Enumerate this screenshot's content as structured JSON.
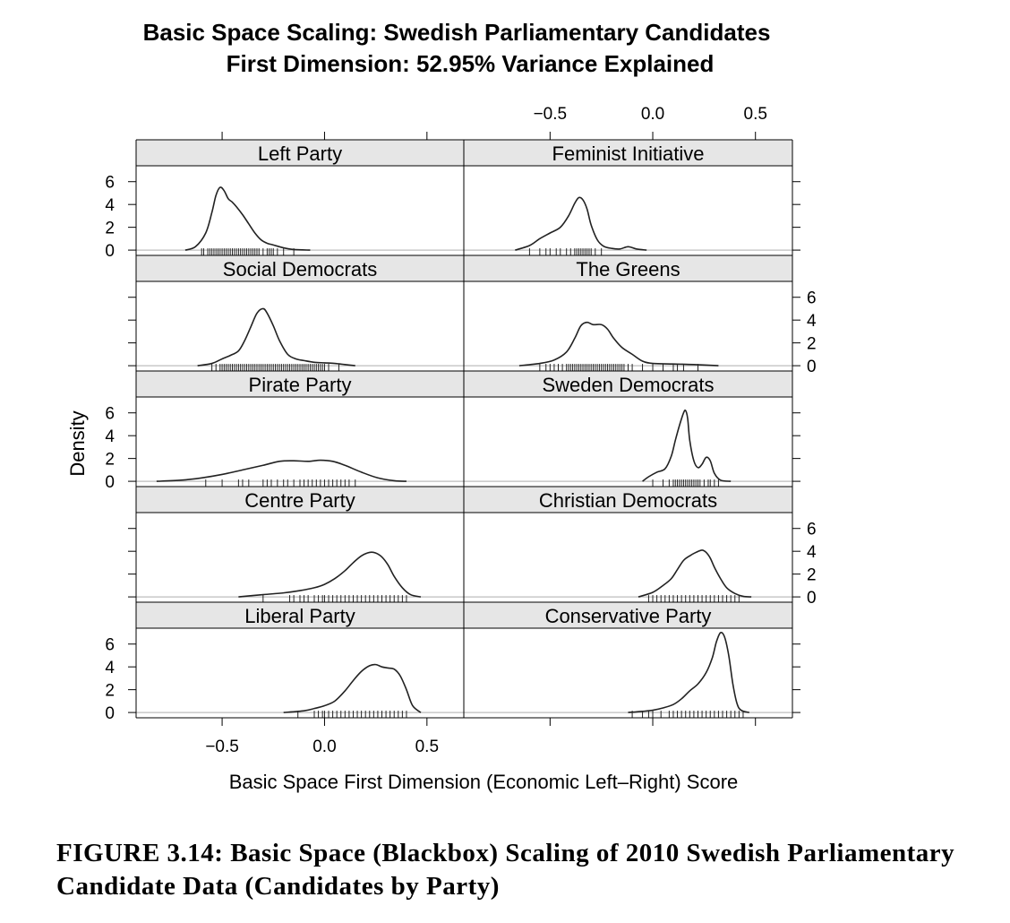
{
  "caption": "FIGURE 3.14: Basic Space (Blackbox) Scaling of 2010 Swedish Parliamentary Candidate Data (Candidates by Party)",
  "chart_data": {
    "type": "area",
    "title": "Basic Space Scaling: Swedish Parliamentary Candidates",
    "subtitle": "First Dimension: 52.95% Variance Explained",
    "xlabel": "Basic Space First Dimension (Economic Left–Right) Score",
    "ylabel": "Density",
    "xlim": [
      -0.92,
      0.68
    ],
    "ylim": [
      -0.15,
      7.0
    ],
    "x_ticks": [
      -0.5,
      0.0,
      0.5
    ],
    "x_tick_labels": [
      "−0.5",
      "0.0",
      "0.5"
    ],
    "y_ticks": [
      0,
      2,
      4,
      6
    ],
    "y_tick_labels": [
      "0",
      "2",
      "4",
      "6"
    ],
    "grid": false,
    "legend": "none",
    "layout": {
      "columns": 2,
      "rows": 5
    },
    "panels": [
      {
        "name": "Left Party",
        "col": 0,
        "row": 0,
        "x": [
          -0.68,
          -0.63,
          -0.58,
          -0.55,
          -0.53,
          -0.51,
          -0.49,
          -0.47,
          -0.45,
          -0.43,
          -0.4,
          -0.37,
          -0.34,
          -0.31,
          -0.28,
          -0.25,
          -0.2,
          -0.15,
          -0.07
        ],
        "y": [
          0.0,
          0.3,
          1.5,
          3.3,
          4.8,
          5.5,
          5.2,
          4.5,
          4.2,
          3.8,
          3.1,
          2.3,
          1.5,
          0.9,
          0.6,
          0.45,
          0.2,
          0.05,
          0.0
        ],
        "rug": [
          -0.6,
          -0.59,
          -0.57,
          -0.56,
          -0.55,
          -0.54,
          -0.53,
          -0.52,
          -0.51,
          -0.5,
          -0.49,
          -0.48,
          -0.47,
          -0.46,
          -0.45,
          -0.44,
          -0.43,
          -0.42,
          -0.41,
          -0.4,
          -0.39,
          -0.38,
          -0.37,
          -0.36,
          -0.35,
          -0.34,
          -0.33,
          -0.32,
          -0.3,
          -0.28,
          -0.27,
          -0.26,
          -0.25,
          -0.23,
          -0.2,
          -0.15
        ]
      },
      {
        "name": "Social Democrats",
        "col": 0,
        "row": 1,
        "x": [
          -0.62,
          -0.55,
          -0.5,
          -0.46,
          -0.42,
          -0.39,
          -0.36,
          -0.33,
          -0.3,
          -0.28,
          -0.25,
          -0.22,
          -0.18,
          -0.14,
          -0.1,
          -0.05,
          0.0,
          0.05,
          0.1,
          0.15
        ],
        "y": [
          0.0,
          0.2,
          0.6,
          0.9,
          1.3,
          2.2,
          3.4,
          4.6,
          5.0,
          4.6,
          3.5,
          2.2,
          1.0,
          0.6,
          0.45,
          0.3,
          0.25,
          0.2,
          0.1,
          0.0
        ],
        "rug": [
          -0.55,
          -0.53,
          -0.51,
          -0.5,
          -0.49,
          -0.48,
          -0.47,
          -0.46,
          -0.45,
          -0.44,
          -0.43,
          -0.42,
          -0.41,
          -0.4,
          -0.39,
          -0.38,
          -0.37,
          -0.36,
          -0.35,
          -0.34,
          -0.33,
          -0.32,
          -0.31,
          -0.3,
          -0.29,
          -0.28,
          -0.27,
          -0.26,
          -0.25,
          -0.24,
          -0.23,
          -0.22,
          -0.21,
          -0.2,
          -0.19,
          -0.18,
          -0.17,
          -0.16,
          -0.15,
          -0.14,
          -0.13,
          -0.12,
          -0.11,
          -0.1,
          -0.09,
          -0.08,
          -0.07,
          -0.06,
          -0.05,
          -0.04,
          -0.03,
          -0.02,
          -0.01,
          0.0,
          0.02,
          0.07
        ]
      },
      {
        "name": "Pirate Party",
        "col": 0,
        "row": 2,
        "x": [
          -0.82,
          -0.7,
          -0.6,
          -0.5,
          -0.4,
          -0.3,
          -0.22,
          -0.15,
          -0.08,
          -0.02,
          0.04,
          0.1,
          0.18,
          0.26,
          0.34,
          0.4
        ],
        "y": [
          0.0,
          0.1,
          0.3,
          0.6,
          1.0,
          1.4,
          1.75,
          1.8,
          1.75,
          1.85,
          1.75,
          1.4,
          0.8,
          0.3,
          0.05,
          0.0
        ],
        "rug": [
          -0.58,
          -0.5,
          -0.42,
          -0.4,
          -0.37,
          -0.3,
          -0.28,
          -0.26,
          -0.23,
          -0.2,
          -0.18,
          -0.15,
          -0.12,
          -0.1,
          -0.08,
          -0.06,
          -0.04,
          -0.02,
          0.0,
          0.02,
          0.04,
          0.06,
          0.08,
          0.1,
          0.12,
          0.15
        ]
      },
      {
        "name": "Centre Party",
        "col": 0,
        "row": 3,
        "x": [
          -0.42,
          -0.3,
          -0.2,
          -0.12,
          -0.05,
          0.0,
          0.05,
          0.1,
          0.14,
          0.18,
          0.22,
          0.25,
          0.28,
          0.31,
          0.34,
          0.38,
          0.42,
          0.47
        ],
        "y": [
          0.0,
          0.2,
          0.35,
          0.55,
          0.8,
          1.1,
          1.6,
          2.3,
          3.0,
          3.6,
          3.9,
          3.85,
          3.5,
          2.8,
          1.8,
          0.8,
          0.2,
          0.0
        ],
        "rug": [
          -0.3,
          -0.17,
          -0.15,
          -0.12,
          -0.1,
          -0.08,
          -0.05,
          -0.03,
          -0.01,
          0.0,
          0.02,
          0.04,
          0.06,
          0.08,
          0.1,
          0.12,
          0.14,
          0.16,
          0.18,
          0.2,
          0.22,
          0.24,
          0.26,
          0.28,
          0.3,
          0.32,
          0.34,
          0.36,
          0.38,
          0.4
        ]
      },
      {
        "name": "Liberal Party",
        "col": 0,
        "row": 4,
        "x": [
          -0.2,
          -0.1,
          -0.05,
          0.0,
          0.05,
          0.1,
          0.14,
          0.18,
          0.22,
          0.25,
          0.28,
          0.31,
          0.34,
          0.37,
          0.4,
          0.43,
          0.47
        ],
        "y": [
          0.0,
          0.15,
          0.35,
          0.6,
          1.0,
          1.9,
          2.8,
          3.6,
          4.1,
          4.2,
          4.0,
          3.9,
          3.8,
          3.2,
          2.0,
          0.6,
          0.0
        ],
        "rug": [
          -0.13,
          -0.05,
          -0.03,
          -0.01,
          0.0,
          0.02,
          0.04,
          0.06,
          0.08,
          0.1,
          0.12,
          0.14,
          0.16,
          0.18,
          0.2,
          0.22,
          0.24,
          0.26,
          0.28,
          0.3,
          0.32,
          0.34,
          0.36,
          0.38,
          0.4
        ]
      },
      {
        "name": "Feminist Initiative",
        "col": 1,
        "row": 0,
        "x": [
          -0.67,
          -0.6,
          -0.55,
          -0.5,
          -0.45,
          -0.41,
          -0.38,
          -0.36,
          -0.34,
          -0.32,
          -0.3,
          -0.27,
          -0.24,
          -0.2,
          -0.16,
          -0.12,
          -0.08,
          -0.03
        ],
        "y": [
          0.0,
          0.4,
          1.0,
          1.5,
          2.0,
          3.0,
          4.1,
          4.6,
          4.4,
          3.6,
          2.2,
          0.9,
          0.35,
          0.15,
          0.1,
          0.3,
          0.1,
          0.0
        ],
        "rug": [
          -0.6,
          -0.55,
          -0.52,
          -0.5,
          -0.47,
          -0.45,
          -0.42,
          -0.4,
          -0.38,
          -0.37,
          -0.36,
          -0.35,
          -0.34,
          -0.33,
          -0.32,
          -0.31,
          -0.3,
          -0.28,
          -0.25
        ]
      },
      {
        "name": "The Greens",
        "col": 1,
        "row": 1,
        "x": [
          -0.65,
          -0.55,
          -0.48,
          -0.42,
          -0.38,
          -0.35,
          -0.32,
          -0.29,
          -0.25,
          -0.22,
          -0.19,
          -0.15,
          -0.1,
          -0.05,
          0.0,
          0.1,
          0.2,
          0.32
        ],
        "y": [
          0.0,
          0.2,
          0.5,
          1.2,
          2.4,
          3.5,
          3.8,
          3.6,
          3.6,
          3.2,
          2.4,
          1.6,
          1.0,
          0.4,
          0.2,
          0.15,
          0.1,
          0.0
        ],
        "rug": [
          -0.55,
          -0.52,
          -0.5,
          -0.48,
          -0.46,
          -0.44,
          -0.42,
          -0.41,
          -0.4,
          -0.39,
          -0.38,
          -0.37,
          -0.36,
          -0.35,
          -0.34,
          -0.33,
          -0.32,
          -0.31,
          -0.3,
          -0.29,
          -0.28,
          -0.27,
          -0.26,
          -0.25,
          -0.24,
          -0.23,
          -0.22,
          -0.21,
          -0.2,
          -0.19,
          -0.18,
          -0.17,
          -0.16,
          -0.15,
          -0.14,
          -0.12,
          -0.1,
          -0.05,
          0.0,
          0.05,
          0.1,
          0.12,
          0.15,
          0.22
        ]
      },
      {
        "name": "Sweden Democrats",
        "col": 1,
        "row": 2,
        "x": [
          -0.05,
          -0.02,
          0.02,
          0.06,
          0.09,
          0.11,
          0.13,
          0.15,
          0.16,
          0.17,
          0.18,
          0.2,
          0.22,
          0.24,
          0.26,
          0.28,
          0.3,
          0.33,
          0.38
        ],
        "y": [
          0.0,
          0.4,
          0.8,
          1.1,
          2.2,
          3.6,
          4.9,
          6.0,
          6.2,
          5.5,
          3.6,
          1.8,
          1.2,
          1.5,
          2.1,
          1.8,
          0.7,
          0.1,
          0.0
        ],
        "rug": [
          0.0,
          0.05,
          0.08,
          0.1,
          0.11,
          0.12,
          0.13,
          0.14,
          0.15,
          0.16,
          0.17,
          0.18,
          0.19,
          0.2,
          0.21,
          0.22,
          0.23,
          0.25,
          0.27,
          0.28,
          0.3,
          0.32
        ]
      },
      {
        "name": "Christian Democrats",
        "col": 1,
        "row": 3,
        "x": [
          -0.07,
          0.0,
          0.05,
          0.09,
          0.12,
          0.15,
          0.18,
          0.21,
          0.24,
          0.26,
          0.28,
          0.3,
          0.33,
          0.36,
          0.4,
          0.44,
          0.48
        ],
        "y": [
          0.0,
          0.4,
          1.0,
          1.6,
          2.4,
          3.2,
          3.6,
          3.9,
          4.1,
          3.9,
          3.4,
          2.6,
          1.6,
          0.8,
          0.3,
          0.05,
          0.0
        ],
        "rug": [
          -0.02,
          0.0,
          0.02,
          0.04,
          0.06,
          0.08,
          0.1,
          0.12,
          0.14,
          0.16,
          0.18,
          0.2,
          0.22,
          0.24,
          0.26,
          0.28,
          0.3,
          0.32,
          0.34,
          0.36,
          0.38,
          0.4,
          0.42
        ]
      },
      {
        "name": "Conservative Party",
        "col": 1,
        "row": 4,
        "x": [
          -0.12,
          -0.05,
          0.0,
          0.05,
          0.1,
          0.14,
          0.18,
          0.22,
          0.26,
          0.29,
          0.31,
          0.33,
          0.35,
          0.37,
          0.39,
          0.41,
          0.43,
          0.47
        ],
        "y": [
          0.0,
          0.1,
          0.2,
          0.4,
          0.7,
          1.2,
          1.9,
          2.5,
          3.5,
          4.8,
          6.2,
          7.0,
          6.6,
          5.0,
          2.5,
          0.8,
          0.2,
          0.0
        ],
        "rug": [
          -0.1,
          -0.05,
          -0.02,
          0.0,
          0.04,
          0.08,
          0.1,
          0.12,
          0.14,
          0.16,
          0.18,
          0.2,
          0.22,
          0.24,
          0.26,
          0.28,
          0.3,
          0.32,
          0.34,
          0.36,
          0.38,
          0.4,
          0.42,
          0.44
        ]
      }
    ]
  }
}
